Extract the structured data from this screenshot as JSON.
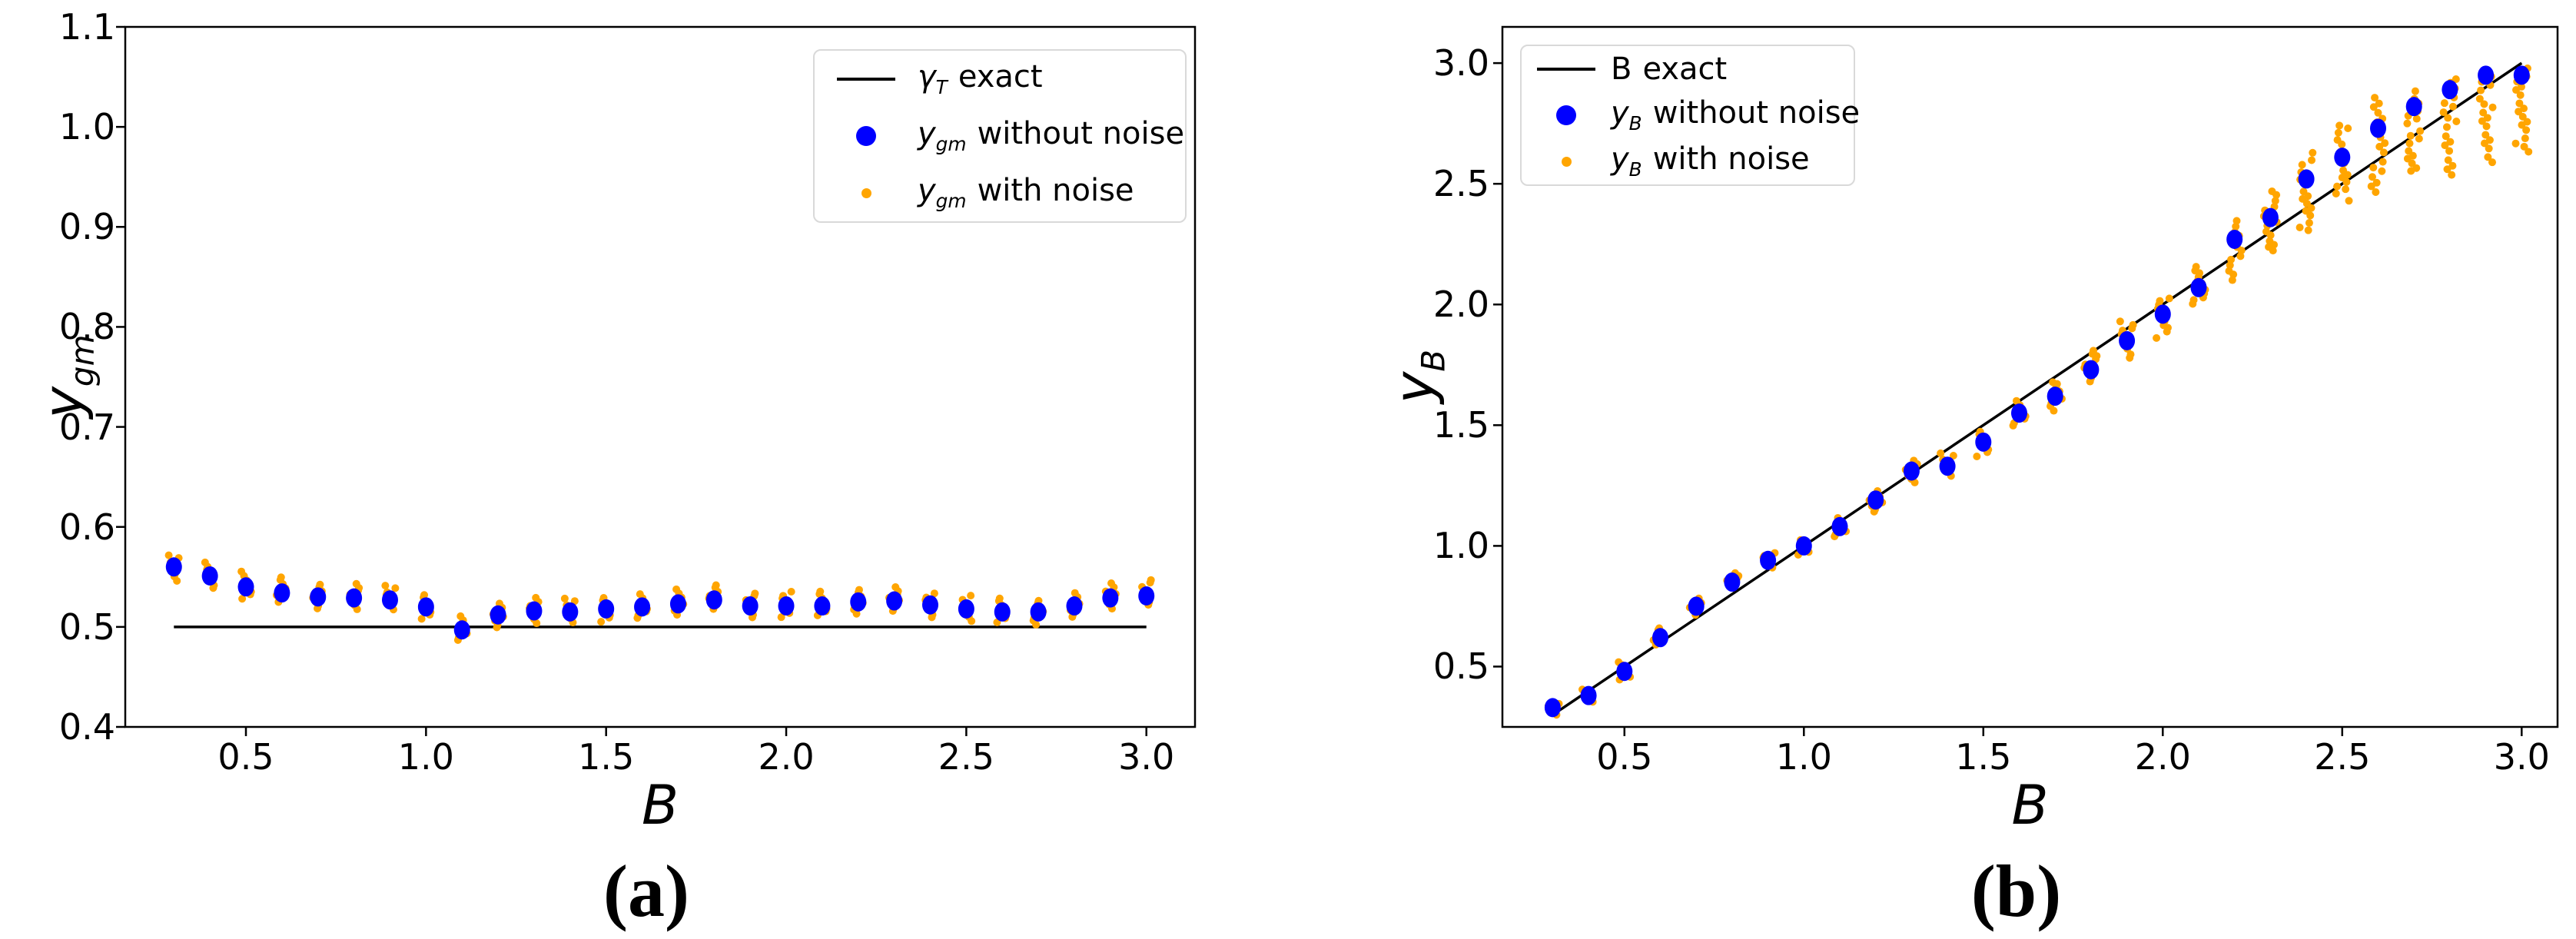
{
  "ui": {
    "caption_a": "(a)",
    "caption_b": "(b)",
    "colors": {
      "exact_line": "#000000",
      "without_noise": "#0000ff",
      "with_noise": "#ffa500",
      "text": "#000000",
      "legend_border": "#d9d9d9"
    }
  },
  "chart_data": [
    {
      "type": "scatter",
      "panel": "a",
      "xlabel": {
        "main": "B",
        "sub": ""
      },
      "ylabel": {
        "main": "y",
        "sub": "gm"
      },
      "xlim": [
        0.165,
        3.135
      ],
      "ylim": [
        0.4,
        1.1
      ],
      "x_ticks": [
        0.5,
        1.0,
        1.5,
        2.0,
        2.5,
        3.0
      ],
      "y_ticks": [
        0.4,
        0.5,
        0.6,
        0.7,
        0.8,
        0.9,
        1.0,
        1.1
      ],
      "grid": false,
      "legend_position": "upper right",
      "exact_line": {
        "x_start": 0.3,
        "y_start": 0.5,
        "x_end": 3.0,
        "y_end": 0.5,
        "color": "#000000"
      },
      "series": [
        {
          "name": "y_gm without noise",
          "marker": "circle-large",
          "color": "#0000ff",
          "x": [
            0.3,
            0.4,
            0.5,
            0.6,
            0.7,
            0.8,
            0.9,
            1.0,
            1.1,
            1.2,
            1.3,
            1.4,
            1.5,
            1.6,
            1.7,
            1.8,
            1.9,
            2.0,
            2.1,
            2.2,
            2.3,
            2.4,
            2.5,
            2.6,
            2.7,
            2.8,
            2.9,
            3.0
          ],
          "y": [
            0.56,
            0.551,
            0.54,
            0.534,
            0.53,
            0.529,
            0.527,
            0.52,
            0.497,
            0.512,
            0.516,
            0.515,
            0.518,
            0.52,
            0.523,
            0.527,
            0.521,
            0.521,
            0.521,
            0.525,
            0.526,
            0.522,
            0.518,
            0.515,
            0.515,
            0.521,
            0.529,
            0.531
          ]
        },
        {
          "name": "y_gm with noise",
          "marker": "circle-small",
          "color": "#ffa500",
          "clouds": [
            [
              0.3,
              0.546,
              0.576,
              8
            ],
            [
              0.4,
              0.537,
              0.567,
              8
            ],
            [
              0.5,
              0.526,
              0.556,
              8
            ],
            [
              0.6,
              0.521,
              0.55,
              8
            ],
            [
              0.7,
              0.517,
              0.545,
              8
            ],
            [
              0.8,
              0.516,
              0.544,
              8
            ],
            [
              0.9,
              0.514,
              0.542,
              8
            ],
            [
              1.0,
              0.507,
              0.535,
              8
            ],
            [
              1.1,
              0.484,
              0.512,
              8
            ],
            [
              1.2,
              0.499,
              0.527,
              8
            ],
            [
              1.3,
              0.503,
              0.531,
              8
            ],
            [
              1.4,
              0.502,
              0.53,
              8
            ],
            [
              1.5,
              0.505,
              0.533,
              8
            ],
            [
              1.6,
              0.507,
              0.535,
              8
            ],
            [
              1.7,
              0.51,
              0.538,
              8
            ],
            [
              1.8,
              0.514,
              0.542,
              8
            ],
            [
              1.9,
              0.508,
              0.536,
              8
            ],
            [
              2.0,
              0.508,
              0.536,
              8
            ],
            [
              2.1,
              0.508,
              0.536,
              8
            ],
            [
              2.2,
              0.512,
              0.54,
              8
            ],
            [
              2.3,
              0.513,
              0.541,
              8
            ],
            [
              2.4,
              0.509,
              0.537,
              8
            ],
            [
              2.5,
              0.505,
              0.533,
              8
            ],
            [
              2.6,
              0.502,
              0.53,
              8
            ],
            [
              2.7,
              0.502,
              0.53,
              8
            ],
            [
              2.8,
              0.508,
              0.536,
              8
            ],
            [
              2.9,
              0.516,
              0.544,
              8
            ],
            [
              3.0,
              0.518,
              0.547,
              8
            ]
          ]
        }
      ],
      "legend": {
        "entries": [
          {
            "marker": "line",
            "color": "#000000",
            "italic": true,
            "label": {
              "main": "γ",
              "sub": "T",
              "rest": "exact"
            }
          },
          {
            "marker": "dot-large",
            "color": "#0000ff",
            "italic": true,
            "label": {
              "main": "y",
              "sub": "gm",
              "rest": "without noise"
            }
          },
          {
            "marker": "dot-small",
            "color": "#ffa500",
            "italic": true,
            "label": {
              "main": "y",
              "sub": "gm",
              "rest": "with noise"
            }
          }
        ]
      }
    },
    {
      "type": "scatter",
      "panel": "b",
      "xlabel": {
        "main": "B",
        "sub": ""
      },
      "ylabel": {
        "main": "y",
        "sub": "B"
      },
      "xlim": [
        0.16,
        3.1
      ],
      "ylim": [
        0.25,
        3.15
      ],
      "x_ticks": [
        0.5,
        1.0,
        1.5,
        2.0,
        2.5,
        3.0
      ],
      "y_ticks": [
        0.5,
        1.0,
        1.5,
        2.0,
        2.5,
        3.0
      ],
      "grid": false,
      "legend_position": "upper left",
      "exact_line": {
        "x_start": 0.3,
        "y_start": 0.3,
        "x_end": 3.0,
        "y_end": 3.0,
        "color": "#000000"
      },
      "series": [
        {
          "name": "y_B without noise",
          "marker": "circle-large",
          "color": "#0000ff",
          "x": [
            0.3,
            0.4,
            0.5,
            0.6,
            0.7,
            0.8,
            0.9,
            1.0,
            1.1,
            1.2,
            1.3,
            1.4,
            1.5,
            1.6,
            1.7,
            1.8,
            1.9,
            2.0,
            2.1,
            2.2,
            2.3,
            2.4,
            2.5,
            2.6,
            2.7,
            2.8,
            2.9,
            3.0
          ],
          "y": [
            0.33,
            0.38,
            0.48,
            0.62,
            0.75,
            0.85,
            0.94,
            1.0,
            1.08,
            1.19,
            1.31,
            1.33,
            1.43,
            1.55,
            1.62,
            1.73,
            1.85,
            1.96,
            2.07,
            2.27,
            2.36,
            2.52,
            2.61,
            2.73,
            2.82,
            2.89,
            2.95,
            2.95
          ]
        },
        {
          "name": "y_B with noise",
          "marker": "circle-small",
          "color": "#ffa500",
          "clouds": [
            [
              0.3,
              0.3,
              0.36,
              5
            ],
            [
              0.4,
              0.35,
              0.41,
              5
            ],
            [
              0.5,
              0.44,
              0.52,
              6
            ],
            [
              0.6,
              0.58,
              0.66,
              6
            ],
            [
              0.7,
              0.71,
              0.79,
              6
            ],
            [
              0.8,
              0.81,
              0.89,
              6
            ],
            [
              0.9,
              0.9,
              0.98,
              6
            ],
            [
              1.0,
              0.96,
              1.04,
              6
            ],
            [
              1.1,
              1.03,
              1.12,
              7
            ],
            [
              1.2,
              1.14,
              1.24,
              7
            ],
            [
              1.3,
              1.26,
              1.36,
              7
            ],
            [
              1.4,
              1.28,
              1.39,
              7
            ],
            [
              1.5,
              1.37,
              1.49,
              8
            ],
            [
              1.6,
              1.49,
              1.61,
              8
            ],
            [
              1.7,
              1.55,
              1.68,
              9
            ],
            [
              1.8,
              1.66,
              1.81,
              10
            ],
            [
              1.9,
              1.77,
              1.93,
              11
            ],
            [
              2.0,
              1.85,
              2.03,
              11
            ],
            [
              2.1,
              1.98,
              2.16,
              12
            ],
            [
              2.2,
              2.09,
              2.35,
              13
            ],
            [
              2.3,
              2.21,
              2.48,
              15
            ],
            [
              2.4,
              2.3,
              2.64,
              17
            ],
            [
              2.5,
              2.42,
              2.75,
              17
            ],
            [
              2.6,
              2.45,
              2.88,
              18
            ],
            [
              2.7,
              2.55,
              2.9,
              18
            ],
            [
              2.8,
              2.53,
              2.95,
              18
            ],
            [
              2.9,
              2.58,
              2.97,
              18
            ],
            [
              3.0,
              2.6,
              2.98,
              18
            ]
          ]
        }
      ],
      "legend": {
        "entries": [
          {
            "marker": "line",
            "color": "#000000",
            "italic": false,
            "label": {
              "main": "B",
              "sub": "",
              "rest": "exact"
            }
          },
          {
            "marker": "dot-large",
            "color": "#0000ff",
            "italic": true,
            "label": {
              "main": "y",
              "sub": "B",
              "rest": "without noise"
            }
          },
          {
            "marker": "dot-small",
            "color": "#ffa500",
            "italic": true,
            "label": {
              "main": "y",
              "sub": "B",
              "rest": "with noise"
            }
          }
        ]
      }
    }
  ]
}
